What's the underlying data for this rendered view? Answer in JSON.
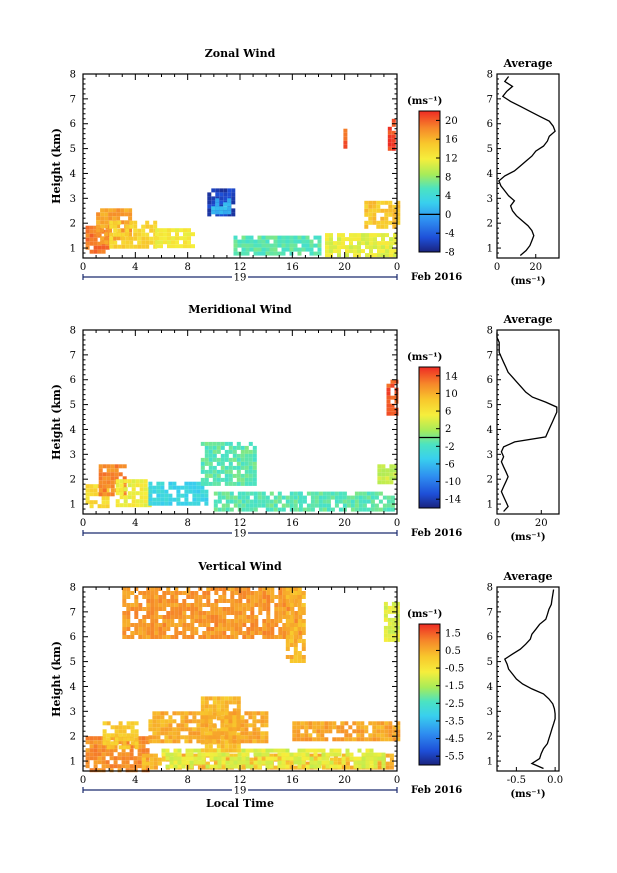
{
  "chart_data": [
    {
      "type": "heatmap",
      "id": "zonal",
      "title": "Zonal Wind",
      "ylabel": "Height (km)",
      "xlabel": "",
      "xticks": [
        "0",
        "4",
        "8",
        "12",
        "16",
        "20",
        "0"
      ],
      "yticks": [
        "1",
        "2",
        "3",
        "4",
        "5",
        "6",
        "7",
        "8"
      ],
      "xlim": [
        0,
        24
      ],
      "ylim": [
        0.6,
        8
      ],
      "date_day": "19",
      "date_label": "Feb 2016",
      "colorbar": {
        "unit": "(ms⁻¹)",
        "range": [
          -8,
          22
        ],
        "ticks": [
          "20",
          "16",
          "12",
          "8",
          "4",
          "0",
          "-4",
          "-8"
        ],
        "tick_values": [
          20,
          16,
          12,
          8,
          4,
          0,
          -4,
          -8
        ]
      },
      "regions": [
        {
          "x": [
            0.2,
            2.0
          ],
          "y": [
            0.9,
            1.9
          ],
          "value": 19
        },
        {
          "x": [
            1.0,
            3.5
          ],
          "y": [
            1.3,
            2.6
          ],
          "value": 17
        },
        {
          "x": [
            2.0,
            5.5
          ],
          "y": [
            1.0,
            2.1
          ],
          "value": 14
        },
        {
          "x": [
            5.5,
            8.5
          ],
          "y": [
            1.1,
            1.8
          ],
          "value": 12
        },
        {
          "x": [
            9.5,
            11.5
          ],
          "y": [
            2.3,
            3.4
          ],
          "value": -6
        },
        {
          "x": [
            9.8,
            11.2
          ],
          "y": [
            2.5,
            3.0
          ],
          "value": 1
        },
        {
          "x": [
            11.5,
            18.0
          ],
          "y": [
            0.8,
            1.5
          ],
          "value": 6
        },
        {
          "x": [
            18.5,
            23.7
          ],
          "y": [
            0.7,
            1.6
          ],
          "value": 11
        },
        {
          "x": [
            21.5,
            24.0
          ],
          "y": [
            1.8,
            2.9
          ],
          "value": 15
        },
        {
          "x": [
            19.9,
            20.2
          ],
          "y": [
            5.1,
            5.8
          ],
          "value": 20
        },
        {
          "x": [
            23.3,
            23.9
          ],
          "y": [
            5.0,
            6.2
          ],
          "value": 21
        }
      ],
      "average": {
        "title": "Average",
        "xlabel": "(ms⁻¹)",
        "xticks": [
          "0",
          "20"
        ],
        "xlim": [
          0,
          32
        ],
        "height": [
          0.7,
          0.9,
          1.1,
          1.3,
          1.5,
          1.7,
          1.9,
          2.1,
          2.3,
          2.5,
          2.7,
          2.9,
          3.1,
          3.3,
          3.5,
          3.7,
          3.9,
          4.1,
          4.3,
          4.5,
          4.7,
          4.9,
          5.1,
          5.3,
          5.5,
          5.7,
          5.9,
          6.1,
          6.3,
          6.5,
          6.7,
          6.9,
          7.1,
          7.3,
          7.5,
          7.7,
          7.9
        ],
        "value": [
          12,
          15,
          17,
          18,
          19,
          18,
          16,
          13,
          10,
          8,
          7,
          9,
          6,
          4,
          2,
          1,
          4,
          9,
          12,
          15,
          18,
          20,
          24,
          26,
          27,
          30,
          29,
          27,
          22,
          17,
          12,
          7,
          3,
          5,
          8,
          4,
          6
        ]
      }
    },
    {
      "type": "heatmap",
      "id": "meridional",
      "title": "Meridional Wind",
      "ylabel": "Height (km)",
      "xlabel": "",
      "xticks": [
        "0",
        "4",
        "8",
        "12",
        "16",
        "20",
        "0"
      ],
      "yticks": [
        "1",
        "2",
        "3",
        "4",
        "5",
        "6",
        "7",
        "8"
      ],
      "xlim": [
        0,
        24
      ],
      "ylim": [
        0.6,
        8
      ],
      "date_day": "19",
      "date_label": "Feb 2016",
      "colorbar": {
        "unit": "(ms⁻¹)",
        "range": [
          -16,
          16
        ],
        "ticks": [
          "14",
          "10",
          "6",
          "2",
          "-2",
          "-6",
          "-10",
          "-14"
        ],
        "tick_values": [
          14,
          10,
          6,
          2,
          -2,
          -6,
          -10,
          -14
        ]
      },
      "regions": [
        {
          "x": [
            0.2,
            2.0
          ],
          "y": [
            0.9,
            1.8
          ],
          "value": 7
        },
        {
          "x": [
            1.2,
            3.2
          ],
          "y": [
            1.4,
            2.6
          ],
          "value": 12
        },
        {
          "x": [
            2.5,
            5.0
          ],
          "y": [
            1.0,
            2.0
          ],
          "value": 5
        },
        {
          "x": [
            5.0,
            9.5
          ],
          "y": [
            1.0,
            1.9
          ],
          "value": -4
        },
        {
          "x": [
            9.0,
            13.0
          ],
          "y": [
            1.8,
            3.5
          ],
          "value": -1
        },
        {
          "x": [
            10.0,
            16.5
          ],
          "y": [
            0.8,
            1.5
          ],
          "value": -1
        },
        {
          "x": [
            16.5,
            23.8
          ],
          "y": [
            0.7,
            1.5
          ],
          "value": -1
        },
        {
          "x": [
            22.5,
            24.0
          ],
          "y": [
            1.8,
            2.6
          ],
          "value": 3
        },
        {
          "x": [
            23.2,
            24.0
          ],
          "y": [
            4.6,
            6.0
          ],
          "value": 14
        }
      ],
      "average": {
        "title": "Average",
        "xlabel": "(ms⁻¹)",
        "xticks": [
          "0",
          "20"
        ],
        "xlim": [
          0,
          28
        ],
        "height": [
          0.7,
          0.9,
          1.1,
          1.3,
          1.5,
          1.7,
          1.9,
          2.1,
          2.3,
          2.5,
          2.7,
          2.9,
          3.1,
          3.3,
          3.5,
          3.7,
          3.9,
          4.1,
          4.3,
          4.5,
          4.7,
          4.9,
          5.1,
          5.3,
          5.5,
          5.7,
          5.9,
          6.1,
          6.3,
          6.5,
          6.7,
          6.9,
          7.1,
          7.3,
          7.5,
          7.7,
          7.9
        ],
        "value": [
          3,
          5,
          4,
          3,
          2,
          3,
          4,
          5,
          4,
          3,
          2,
          3,
          2,
          3,
          8,
          22,
          23,
          24,
          25,
          26,
          27,
          27,
          22,
          16,
          13,
          11,
          9,
          7,
          5,
          4,
          3,
          2,
          1,
          1,
          1,
          0,
          0
        ]
      }
    },
    {
      "type": "heatmap",
      "id": "vertical",
      "title": "Vertical Wind",
      "ylabel": "Height (km)",
      "xlabel": "Local Time",
      "xticks": [
        "0",
        "4",
        "8",
        "12",
        "16",
        "20",
        "0"
      ],
      "yticks": [
        "1",
        "2",
        "3",
        "4",
        "5",
        "6",
        "7",
        "8"
      ],
      "xlim": [
        0,
        24
      ],
      "ylim": [
        0.6,
        8
      ],
      "date_day": "19",
      "date_label": "Feb 2016",
      "colorbar": {
        "unit": "(ms⁻¹)",
        "range": [
          -6,
          2
        ],
        "ticks": [
          "1.5",
          "0.5",
          "-0.5",
          "-1.5",
          "-2.5",
          "-3.5",
          "-4.5",
          "-5.5"
        ],
        "tick_values": [
          1.5,
          0.5,
          -0.5,
          -1.5,
          -2.5,
          -3.5,
          -4.5,
          -5.5
        ]
      },
      "regions": [
        {
          "x": [
            0.2,
            5.0
          ],
          "y": [
            0.7,
            2.0
          ],
          "value": 0.9
        },
        {
          "x": [
            1.5,
            4.0
          ],
          "y": [
            1.5,
            2.6
          ],
          "value": 0.1
        },
        {
          "x": [
            4.5,
            23.5
          ],
          "y": [
            0.8,
            1.3
          ],
          "value": 0.4
        },
        {
          "x": [
            6.0,
            23.0
          ],
          "y": [
            0.8,
            1.5
          ],
          "value": -1.0
        },
        {
          "x": [
            9.0,
            12.0
          ],
          "y": [
            1.5,
            3.6
          ],
          "value": 0.3
        },
        {
          "x": [
            5.0,
            14.0
          ],
          "y": [
            1.8,
            3.0
          ],
          "value": 0.5
        },
        {
          "x": [
            16.0,
            24.0
          ],
          "y": [
            1.8,
            2.6
          ],
          "value": 0.6
        },
        {
          "x": [
            3.0,
            16.5
          ],
          "y": [
            6.0,
            8.0
          ],
          "value": 0.8
        },
        {
          "x": [
            15.5,
            17.0
          ],
          "y": [
            5.0,
            8.0
          ],
          "value": 0.4
        },
        {
          "x": [
            23.0,
            24.0
          ],
          "y": [
            5.8,
            7.4
          ],
          "value": -1.0
        }
      ],
      "average": {
        "title": "Average",
        "xlabel": "(ms⁻¹)",
        "xticks": [
          "-0.5",
          "0.0"
        ],
        "xlim": [
          -0.75,
          0.05
        ],
        "height": [
          0.7,
          0.9,
          1.1,
          1.3,
          1.5,
          1.7,
          1.9,
          2.1,
          2.3,
          2.5,
          2.7,
          2.9,
          3.1,
          3.3,
          3.5,
          3.7,
          3.9,
          4.1,
          4.3,
          4.5,
          4.7,
          4.9,
          5.1,
          5.3,
          5.5,
          5.7,
          5.9,
          6.1,
          6.3,
          6.5,
          6.7,
          6.9,
          7.1,
          7.3,
          7.5,
          7.7,
          7.9
        ],
        "value": [
          -0.15,
          -0.3,
          -0.2,
          -0.18,
          -0.15,
          -0.1,
          -0.08,
          -0.06,
          -0.04,
          -0.02,
          0.0,
          0.0,
          -0.01,
          -0.03,
          -0.08,
          -0.15,
          -0.3,
          -0.42,
          -0.5,
          -0.55,
          -0.6,
          -0.62,
          -0.65,
          -0.55,
          -0.45,
          -0.38,
          -0.32,
          -0.3,
          -0.25,
          -0.2,
          -0.12,
          -0.1,
          -0.08,
          -0.05,
          -0.04,
          -0.03,
          -0.02
        ]
      }
    }
  ]
}
